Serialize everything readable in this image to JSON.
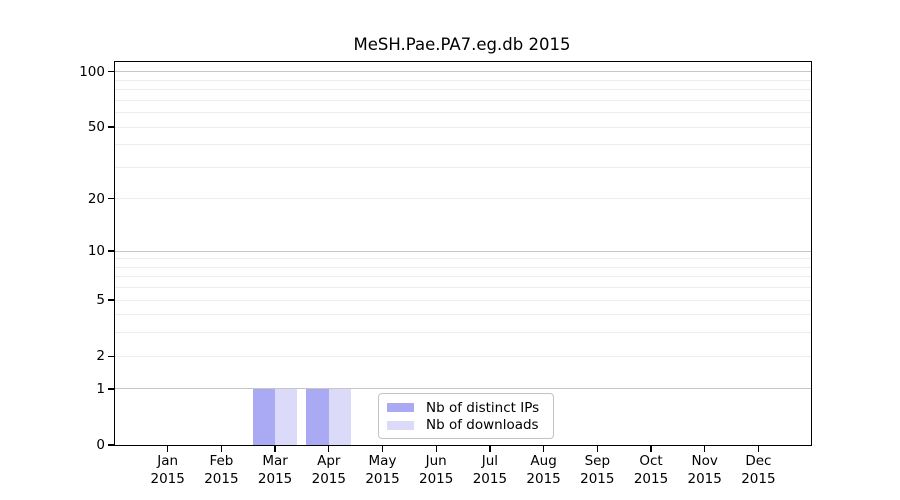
{
  "title": "MeSH.Pae.PA7.eg.db 2015",
  "chart_data": {
    "type": "bar",
    "categories": [
      "Jan",
      "Feb",
      "Mar",
      "Apr",
      "May",
      "Jun",
      "Jul",
      "Aug",
      "Sep",
      "Oct",
      "Nov",
      "Dec"
    ],
    "category_year": "2015",
    "series": [
      {
        "name": "Nb of distinct IPs",
        "color": "#a9a9f4",
        "values": [
          0,
          0,
          1,
          1,
          0,
          0,
          0,
          0,
          0,
          0,
          0,
          0
        ]
      },
      {
        "name": "Nb of downloads",
        "color": "#dbdbf9",
        "values": [
          0,
          0,
          1,
          1,
          0,
          0,
          0,
          0,
          0,
          0,
          0,
          0
        ]
      }
    ],
    "xlabel": "",
    "ylabel": "",
    "yscale": "log1p",
    "ylim": [
      0,
      113
    ],
    "y_tick_values": [
      0,
      1,
      2,
      5,
      10,
      20,
      50,
      100
    ],
    "y_major_gridlines": [
      1,
      10,
      100
    ],
    "y_minor_gridlines": [
      2,
      3,
      4,
      5,
      6,
      7,
      8,
      9,
      20,
      30,
      40,
      50,
      60,
      70,
      80,
      90
    ],
    "grid": true,
    "legend_position": "lower center-right inside plot"
  },
  "colors": {
    "major_grid": "#c6c6c6",
    "minor_grid": "#ececec",
    "axis": "#000000",
    "text": "#000000",
    "background": "#ffffff"
  }
}
